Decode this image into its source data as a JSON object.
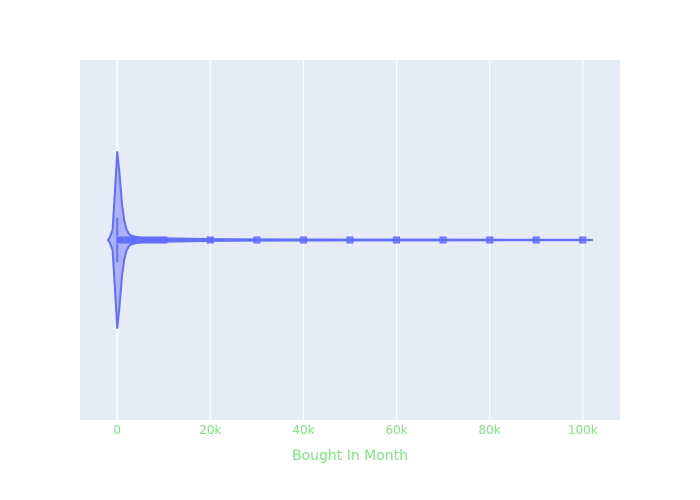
{
  "chart_data": {
    "type": "violin",
    "orientation": "horizontal",
    "title": "",
    "xlabel": "Bought In Month",
    "ylabel": "",
    "xlim": [
      -8000,
      108000
    ],
    "x_ticks": [
      0,
      20000,
      40000,
      60000,
      80000,
      100000
    ],
    "x_tick_labels": [
      "0",
      "20k",
      "40k",
      "60k",
      "80k",
      "100k"
    ],
    "grid": true,
    "legend": "none",
    "series": [
      {
        "name": "",
        "box": {
          "min": 0,
          "q1": 0,
          "median": 0,
          "q3": 200,
          "whisker_low": 0,
          "whisker_high": 500
        },
        "outliers": [
          600,
          700,
          800,
          900,
          1000,
          2000,
          3000,
          4000,
          5000,
          6000,
          7000,
          8000,
          9000,
          10000,
          20000,
          30000,
          40000,
          50000,
          60000,
          70000,
          80000,
          90000,
          100000
        ],
        "density": {
          "x": [
            -2000,
            -1500,
            -1000,
            -500,
            0,
            500,
            1000,
            1500,
            2000,
            2500,
            3000,
            4000,
            5000,
            7000,
            10000,
            20000,
            40000,
            70000,
            100000,
            102000
          ],
          "width": [
            0.0,
            0.04,
            0.12,
            0.55,
            1.0,
            0.75,
            0.42,
            0.22,
            0.12,
            0.07,
            0.05,
            0.035,
            0.03,
            0.025,
            0.02,
            0.01,
            0.005,
            0.004,
            0.003,
            0.0
          ]
        }
      }
    ]
  },
  "colors": {
    "plot_bg": "#e5ecf6",
    "grid": "#ffffff",
    "violin_line": "#636efa",
    "violin_fill": "#a5aaf7",
    "tick_text": "#7fe47f",
    "axis_title": "#7fe47f"
  }
}
